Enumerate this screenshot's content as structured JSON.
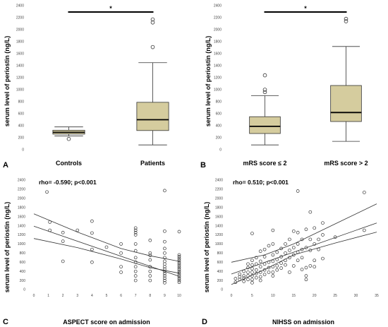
{
  "colors": {
    "box_fill": "#d5cc9e",
    "line": "#333333",
    "point": "#333333",
    "sig_bar": "#000000"
  },
  "chart_data": [
    {
      "id": "A",
      "type": "box",
      "panel_label": "A",
      "ylabel": "serum level of periostin (ng/L)",
      "ylim": [
        0,
        2400
      ],
      "yticks": [
        0,
        200,
        400,
        600,
        800,
        1000,
        1200,
        1400,
        1600,
        1800,
        2000,
        2200,
        2400
      ],
      "categories": [
        "Controls",
        "Patients"
      ],
      "boxes": [
        {
          "category": "Controls",
          "whisker_low": 230,
          "q1": 260,
          "median": 290,
          "q3": 325,
          "whisker_high": 380,
          "outliers": [
            180
          ]
        },
        {
          "category": "Patients",
          "whisker_low": 80,
          "q1": 320,
          "median": 500,
          "q3": 790,
          "whisker_high": 1450,
          "outliers": [
            1710,
            2120,
            2170
          ]
        }
      ],
      "significance": {
        "from": 0,
        "to": 1,
        "label": "*"
      }
    },
    {
      "id": "B",
      "type": "box",
      "panel_label": "B",
      "ylabel": "serum level of periostin (ng/L)",
      "ylim": [
        0,
        2400
      ],
      "yticks": [
        0,
        200,
        400,
        600,
        800,
        1000,
        1200,
        1400,
        1600,
        1800,
        2000,
        2200,
        2400
      ],
      "categories": [
        "mRS score ≤ 2",
        "mRS score > 2"
      ],
      "boxes": [
        {
          "category": "mRS score ≤ 2",
          "whisker_low": 80,
          "q1": 270,
          "median": 390,
          "q3": 550,
          "whisker_high": 900,
          "outliers": [
            960,
            1000,
            1240
          ]
        },
        {
          "category": "mRS score > 2",
          "whisker_low": 140,
          "q1": 470,
          "median": 620,
          "q3": 1070,
          "whisker_high": 1720,
          "outliers": [
            2140,
            2180
          ]
        }
      ],
      "significance": {
        "from": 0,
        "to": 1,
        "label": "*"
      }
    },
    {
      "id": "C",
      "type": "scatter",
      "panel_label": "C",
      "xlabel": "ASPECT score on admission",
      "ylabel": "serum level of periostin (ng/L)",
      "annotation": "rho= -0.590; p<0.001",
      "xlim": [
        0,
        10
      ],
      "xticks": [
        0,
        1,
        2,
        3,
        4,
        5,
        6,
        7,
        8,
        9,
        10
      ],
      "ylim": [
        0,
        2400
      ],
      "yticks": [
        0,
        200,
        400,
        600,
        800,
        1000,
        1200,
        1400,
        1600,
        1800,
        2000,
        2200,
        2400
      ],
      "points": [
        [
          0.9,
          2140
        ],
        [
          1.1,
          1480
        ],
        [
          1.1,
          1300
        ],
        [
          2,
          1250
        ],
        [
          2,
          1060
        ],
        [
          2,
          620
        ],
        [
          3,
          1300
        ],
        [
          4,
          1500
        ],
        [
          4,
          1240
        ],
        [
          4,
          880
        ],
        [
          4,
          600
        ],
        [
          5,
          930
        ],
        [
          6,
          1000
        ],
        [
          6,
          800
        ],
        [
          6,
          500
        ],
        [
          6,
          380
        ],
        [
          7,
          1350
        ],
        [
          7,
          1300
        ],
        [
          7,
          1250
        ],
        [
          7,
          1200
        ],
        [
          7,
          1000
        ],
        [
          7,
          850
        ],
        [
          7,
          700
        ],
        [
          7,
          600
        ],
        [
          7,
          500
        ],
        [
          7,
          400
        ],
        [
          7,
          300
        ],
        [
          7,
          200
        ],
        [
          8,
          1080
        ],
        [
          8,
          800
        ],
        [
          8,
          750
        ],
        [
          8,
          650
        ],
        [
          8,
          500
        ],
        [
          8,
          400
        ],
        [
          8,
          300
        ],
        [
          8,
          200
        ],
        [
          9,
          2170
        ],
        [
          9,
          1280
        ],
        [
          9,
          1050
        ],
        [
          9,
          900
        ],
        [
          9,
          800
        ],
        [
          9,
          700
        ],
        [
          9,
          620
        ],
        [
          9,
          560
        ],
        [
          9,
          500
        ],
        [
          9,
          450
        ],
        [
          9,
          400
        ],
        [
          9,
          350
        ],
        [
          9,
          300
        ],
        [
          9,
          250
        ],
        [
          9,
          200
        ],
        [
          9,
          150
        ],
        [
          10,
          1270
        ],
        [
          10,
          760
        ],
        [
          10,
          720
        ],
        [
          10,
          680
        ],
        [
          10,
          640
        ],
        [
          10,
          600
        ],
        [
          10,
          560
        ],
        [
          10,
          520
        ],
        [
          10,
          480
        ],
        [
          10,
          440
        ],
        [
          10,
          400
        ],
        [
          10,
          360
        ],
        [
          10,
          320
        ],
        [
          10,
          280
        ],
        [
          10,
          240
        ],
        [
          10,
          200
        ],
        [
          10,
          160
        ]
      ],
      "fit": {
        "slope": -110,
        "intercept": 1390
      },
      "ci_upper": [
        [
          0,
          1660
        ],
        [
          3,
          1260
        ],
        [
          6,
          900
        ],
        [
          8,
          740
        ],
        [
          10,
          620
        ]
      ],
      "ci_lower": [
        [
          0,
          1120
        ],
        [
          3,
          920
        ],
        [
          6,
          670
        ],
        [
          8,
          480
        ],
        [
          10,
          360
        ]
      ]
    },
    {
      "id": "D",
      "type": "scatter",
      "panel_label": "D",
      "xlabel": "NIHSS on admission",
      "ylabel": "serum level of periostin (ng/L)",
      "annotation": "rho= 0.510; p<0.001",
      "xlim": [
        0,
        35
      ],
      "xticks": [
        0,
        5,
        10,
        15,
        20,
        25,
        30,
        35
      ],
      "ylim": [
        0,
        2400
      ],
      "yticks": [
        0,
        200,
        400,
        600,
        800,
        1000,
        1200,
        1400,
        1600,
        1800,
        2000,
        2200,
        2400
      ],
      "points": [
        [
          1,
          240
        ],
        [
          1,
          160
        ],
        [
          2,
          340
        ],
        [
          2,
          280
        ],
        [
          2,
          220
        ],
        [
          3,
          400
        ],
        [
          3,
          300
        ],
        [
          3,
          250
        ],
        [
          3,
          180
        ],
        [
          4,
          560
        ],
        [
          4,
          480
        ],
        [
          4,
          380
        ],
        [
          4,
          300
        ],
        [
          4,
          220
        ],
        [
          5,
          1230
        ],
        [
          5,
          640
        ],
        [
          5,
          540
        ],
        [
          5,
          460
        ],
        [
          5,
          380
        ],
        [
          5,
          300
        ],
        [
          5,
          220
        ],
        [
          5,
          150
        ],
        [
          6,
          700
        ],
        [
          6,
          560
        ],
        [
          6,
          430
        ],
        [
          6,
          350
        ],
        [
          6,
          260
        ],
        [
          7,
          840
        ],
        [
          7,
          620
        ],
        [
          7,
          500
        ],
        [
          7,
          380
        ],
        [
          7,
          280
        ],
        [
          7,
          200
        ],
        [
          8,
          880
        ],
        [
          8,
          720
        ],
        [
          8,
          560
        ],
        [
          8,
          430
        ],
        [
          8,
          330
        ],
        [
          9,
          960
        ],
        [
          9,
          600
        ],
        [
          9,
          480
        ],
        [
          9,
          380
        ],
        [
          10,
          1300
        ],
        [
          10,
          1000
        ],
        [
          10,
          760
        ],
        [
          10,
          620
        ],
        [
          10,
          500
        ],
        [
          10,
          380
        ],
        [
          10,
          300
        ],
        [
          11,
          820
        ],
        [
          11,
          660
        ],
        [
          11,
          520
        ],
        [
          11,
          430
        ],
        [
          12,
          900
        ],
        [
          12,
          720
        ],
        [
          12,
          580
        ],
        [
          12,
          470
        ],
        [
          13,
          1000
        ],
        [
          13,
          800
        ],
        [
          13,
          640
        ],
        [
          13,
          540
        ],
        [
          14,
          1100
        ],
        [
          14,
          860
        ],
        [
          14,
          700
        ],
        [
          14,
          380
        ],
        [
          15,
          1280
        ],
        [
          15,
          920
        ],
        [
          15,
          760
        ],
        [
          15,
          520
        ],
        [
          16,
          2160
        ],
        [
          16,
          1250
        ],
        [
          16,
          1000
        ],
        [
          16,
          820
        ],
        [
          16,
          640
        ],
        [
          17,
          1100
        ],
        [
          17,
          880
        ],
        [
          17,
          700
        ],
        [
          17,
          440
        ],
        [
          18,
          1320
        ],
        [
          18,
          920
        ],
        [
          18,
          480
        ],
        [
          18,
          300
        ],
        [
          18,
          220
        ],
        [
          19,
          1700
        ],
        [
          19,
          1100
        ],
        [
          19,
          860
        ],
        [
          19,
          520
        ],
        [
          20,
          1350
        ],
        [
          20,
          1000
        ],
        [
          20,
          640
        ],
        [
          20,
          500
        ],
        [
          21,
          1100
        ],
        [
          21,
          880
        ],
        [
          22,
          1460
        ],
        [
          22,
          1200
        ],
        [
          22,
          680
        ],
        [
          25,
          1150
        ],
        [
          32,
          2130
        ],
        [
          32,
          1300
        ]
      ],
      "fit": {
        "slope": 32,
        "intercept": 340
      },
      "ci_upper": [
        [
          0,
          600
        ],
        [
          8,
          760
        ],
        [
          15,
          1000
        ],
        [
          25,
          1440
        ],
        [
          35,
          1880
        ]
      ],
      "ci_lower": [
        [
          0,
          110
        ],
        [
          8,
          440
        ],
        [
          15,
          760
        ],
        [
          25,
          1020
        ],
        [
          35,
          1260
        ]
      ]
    }
  ]
}
